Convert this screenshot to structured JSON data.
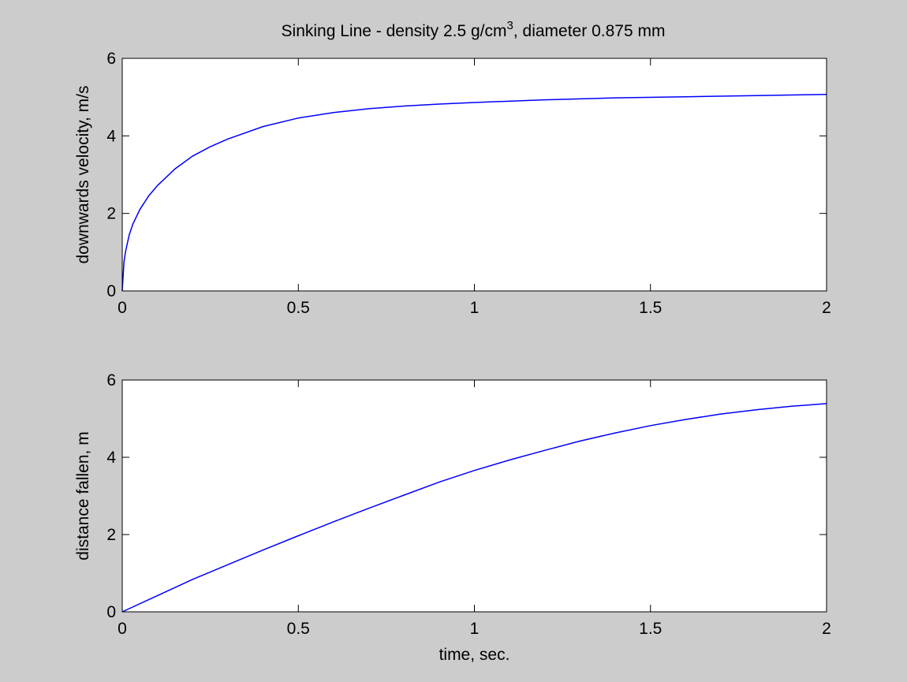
{
  "figure": {
    "background": "#cccccc",
    "axes_background": "#ffffff",
    "line_color": "#0000ff",
    "title_prefix": "Sinking Line - density 2.5 g/cm",
    "title_superscript": "3",
    "title_suffix": ", diameter 0.875 mm"
  },
  "chart_data": [
    {
      "type": "line",
      "title": "Sinking Line - density 2.5 g/cm3, diameter 0.875 mm",
      "xlabel": "",
      "ylabel": "downwards velocity, m/s",
      "xlim": [
        0,
        2
      ],
      "ylim": [
        0,
        6
      ],
      "xticks": [
        0,
        0.5,
        1,
        1.5,
        2
      ],
      "xtick_labels": [
        "0",
        "0.5",
        "1",
        "1.5",
        "2"
      ],
      "yticks": [
        0,
        2,
        4,
        6
      ],
      "ytick_labels": [
        "0",
        "2",
        "4",
        "6"
      ],
      "grid": false,
      "series": [
        {
          "x": [
            0,
            0.005,
            0.01,
            0.02,
            0.03,
            0.05,
            0.075,
            0.1,
            0.15,
            0.2,
            0.25,
            0.3,
            0.4,
            0.5,
            0.6,
            0.7,
            0.8,
            0.9,
            1.0,
            1.2,
            1.4,
            1.6,
            1.8,
            2.0
          ],
          "y": [
            0,
            0.75,
            1.05,
            1.45,
            1.72,
            2.1,
            2.45,
            2.72,
            3.15,
            3.48,
            3.72,
            3.92,
            4.24,
            4.46,
            4.6,
            4.7,
            4.77,
            4.82,
            4.86,
            4.93,
            4.98,
            5.01,
            5.04,
            5.07
          ]
        }
      ]
    },
    {
      "type": "line",
      "title": "",
      "xlabel": "time, sec.",
      "ylabel": "distance fallen, m",
      "xlim": [
        0,
        2
      ],
      "ylim": [
        0,
        6
      ],
      "xticks": [
        0,
        0.5,
        1,
        1.5,
        2
      ],
      "xtick_labels": [
        "0",
        "0.5",
        "1",
        "1.5",
        "2"
      ],
      "yticks": [
        0,
        2,
        4,
        6
      ],
      "ytick_labels": [
        "0",
        "2",
        "4",
        "6"
      ],
      "grid": false,
      "series": [
        {
          "x": [
            0,
            0.1,
            0.2,
            0.3,
            0.4,
            0.5,
            0.6,
            0.7,
            0.8,
            0.9,
            1.0,
            1.1,
            1.2,
            1.3,
            1.4,
            1.5,
            1.6,
            1.7,
            1.8,
            1.9,
            2.0
          ],
          "y": [
            0,
            0.42,
            0.84,
            1.22,
            1.6,
            1.97,
            2.33,
            2.68,
            3.02,
            3.36,
            3.66,
            3.93,
            4.18,
            4.42,
            4.63,
            4.82,
            4.98,
            5.12,
            5.23,
            5.32,
            5.39
          ]
        }
      ]
    }
  ]
}
